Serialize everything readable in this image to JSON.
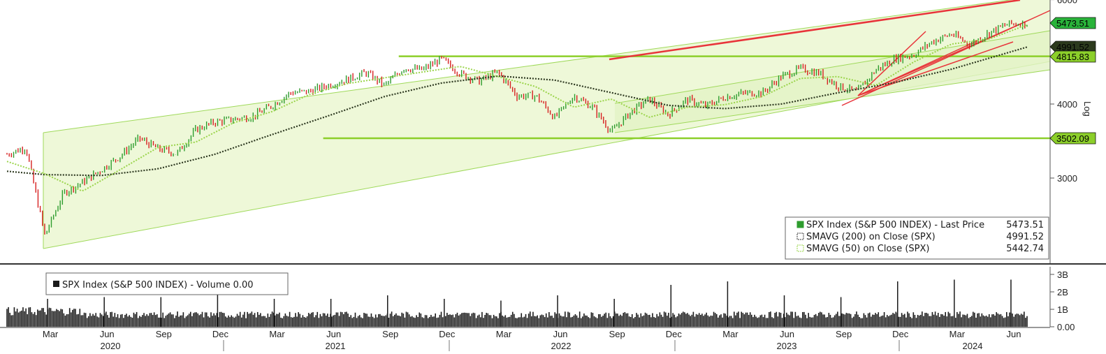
{
  "chart_data": {
    "type": "line",
    "scale": "log",
    "ylim": [
      2200,
      6000
    ],
    "xrange": [
      "2020-01",
      "2024-07"
    ],
    "colors": {
      "price_up": "#2e9c2e",
      "price_down": "#d62020",
      "sma200": "#2f3a22",
      "sma50": "#9ad44a",
      "channel_fill": "#eef8d8",
      "channel_line": "#9fd95a",
      "support_line": "#8ccf2a",
      "trend_line": "#e8343a"
    },
    "price_axis": {
      "ticks": [
        {
          "label": "3000",
          "value": 3000
        },
        {
          "label": "4000",
          "value": 4000
        },
        {
          "label": "6000",
          "value": 6000
        }
      ],
      "side_label": "Log"
    },
    "value_tags": [
      {
        "label": "5473.51",
        "value": 5473.51,
        "bg": "#29b33a"
      },
      {
        "label": "4991.52",
        "value": 4991.52,
        "bg": "#2c3a1d"
      },
      {
        "label": "4815.83",
        "value": 4815.83,
        "bg": "#8ccf2a"
      },
      {
        "label": "3502.09",
        "value": 3502.09,
        "bg": "#8ccf2a"
      }
    ],
    "horizontal_levels": [
      {
        "value": 4815.83,
        "from": "2021-09",
        "to": "2024-07"
      },
      {
        "value": 3502.09,
        "from": "2021-05",
        "to": "2024-07"
      }
    ],
    "series": [
      {
        "name": "SPX Index (S&P 500 INDEX) - Last Price",
        "last_value": "5473.51",
        "points": [
          [
            "2020-01",
            3290
          ],
          [
            "2020-02",
            3380
          ],
          [
            "2020-03",
            2400
          ],
          [
            "2020-04",
            2830
          ],
          [
            "2020-05",
            2950
          ],
          [
            "2020-06",
            3100
          ],
          [
            "2020-07",
            3270
          ],
          [
            "2020-08",
            3500
          ],
          [
            "2020-09",
            3360
          ],
          [
            "2020-10",
            3300
          ],
          [
            "2020-11",
            3620
          ],
          [
            "2020-12",
            3730
          ],
          [
            "2021-01",
            3770
          ],
          [
            "2021-02",
            3810
          ],
          [
            "2021-03",
            3970
          ],
          [
            "2021-04",
            4180
          ],
          [
            "2021-05",
            4200
          ],
          [
            "2021-06",
            4300
          ],
          [
            "2021-07",
            4400
          ],
          [
            "2021-08",
            4520
          ],
          [
            "2021-09",
            4300
          ],
          [
            "2021-10",
            4600
          ],
          [
            "2021-11",
            4570
          ],
          [
            "2021-12",
            4766
          ],
          [
            "2022-01",
            4500
          ],
          [
            "2022-02",
            4370
          ],
          [
            "2022-03",
            4530
          ],
          [
            "2022-04",
            4130
          ],
          [
            "2022-05",
            4130
          ],
          [
            "2022-06",
            3790
          ],
          [
            "2022-07",
            4130
          ],
          [
            "2022-08",
            3950
          ],
          [
            "2022-09",
            3590
          ],
          [
            "2022-10",
            3870
          ],
          [
            "2022-11",
            4080
          ],
          [
            "2022-12",
            3840
          ],
          [
            "2023-01",
            4070
          ],
          [
            "2023-02",
            3970
          ],
          [
            "2023-03",
            4110
          ],
          [
            "2023-04",
            4170
          ],
          [
            "2023-05",
            4180
          ],
          [
            "2023-06",
            4450
          ],
          [
            "2023-07",
            4590
          ],
          [
            "2023-08",
            4510
          ],
          [
            "2023-09",
            4290
          ],
          [
            "2023-10",
            4190
          ],
          [
            "2023-11",
            4570
          ],
          [
            "2023-12",
            4770
          ],
          [
            "2024-01",
            4850
          ],
          [
            "2024-02",
            5100
          ],
          [
            "2024-03",
            5250
          ],
          [
            "2024-04",
            5040
          ],
          [
            "2024-05",
            5280
          ],
          [
            "2024-06",
            5460
          ],
          [
            "2024-07",
            5473.51
          ]
        ]
      },
      {
        "name": "SMAVG (200)  on Close (SPX)",
        "last_value": "4991.52",
        "points": [
          [
            "2020-01",
            3080
          ],
          [
            "2020-03",
            3040
          ],
          [
            "2020-06",
            3030
          ],
          [
            "2020-09",
            3110
          ],
          [
            "2020-12",
            3290
          ],
          [
            "2021-03",
            3550
          ],
          [
            "2021-06",
            3820
          ],
          [
            "2021-09",
            4120
          ],
          [
            "2021-12",
            4340
          ],
          [
            "2022-03",
            4460
          ],
          [
            "2022-06",
            4390
          ],
          [
            "2022-09",
            4180
          ],
          [
            "2022-12",
            3980
          ],
          [
            "2023-03",
            3930
          ],
          [
            "2023-06",
            4000
          ],
          [
            "2023-09",
            4180
          ],
          [
            "2023-12",
            4350
          ],
          [
            "2024-03",
            4580
          ],
          [
            "2024-07",
            4991.52
          ]
        ]
      },
      {
        "name": "SMAVG (50)  on Close (SPX)",
        "last_value": "5442.74",
        "points": [
          [
            "2020-01",
            3200
          ],
          [
            "2020-03",
            3050
          ],
          [
            "2020-05",
            2850
          ],
          [
            "2020-07",
            3100
          ],
          [
            "2020-09",
            3380
          ],
          [
            "2020-11",
            3450
          ],
          [
            "2021-01",
            3720
          ],
          [
            "2021-03",
            3880
          ],
          [
            "2021-05",
            4150
          ],
          [
            "2021-07",
            4330
          ],
          [
            "2021-09",
            4430
          ],
          [
            "2021-11",
            4530
          ],
          [
            "2022-01",
            4630
          ],
          [
            "2022-03",
            4450
          ],
          [
            "2022-05",
            4280
          ],
          [
            "2022-07",
            3950
          ],
          [
            "2022-09",
            4080
          ],
          [
            "2022-11",
            3800
          ],
          [
            "2023-01",
            3950
          ],
          [
            "2023-03",
            3990
          ],
          [
            "2023-05",
            4120
          ],
          [
            "2023-07",
            4420
          ],
          [
            "2023-09",
            4450
          ],
          [
            "2023-11",
            4300
          ],
          [
            "2024-01",
            4710
          ],
          [
            "2024-03",
            5050
          ],
          [
            "2024-05",
            5150
          ],
          [
            "2024-07",
            5442.74
          ]
        ]
      }
    ],
    "volume": {
      "title": "SPX Index (S&P 500 INDEX) - Volume 0.00",
      "ticks": [
        {
          "label": "0.00",
          "value": 0
        },
        {
          "label": "1B",
          "value": 1
        },
        {
          "label": "2B",
          "value": 2
        },
        {
          "label": "3B",
          "value": 3
        }
      ],
      "typical": 0.7,
      "max": 3.2,
      "spikes": [
        [
          "2020-03",
          1.6
        ],
        [
          "2020-06",
          1.7
        ],
        [
          "2020-09",
          1.7
        ],
        [
          "2020-12",
          1.9
        ],
        [
          "2021-03",
          1.6
        ],
        [
          "2021-06",
          1.6
        ],
        [
          "2021-09",
          1.8
        ],
        [
          "2021-12",
          1.6
        ],
        [
          "2022-03",
          1.5
        ],
        [
          "2022-06",
          1.8
        ],
        [
          "2022-09",
          1.6
        ],
        [
          "2022-12",
          2.4
        ],
        [
          "2023-03",
          2.6
        ],
        [
          "2023-06",
          1.8
        ],
        [
          "2023-09",
          1.7
        ],
        [
          "2023-12",
          2.6
        ],
        [
          "2024-03",
          2.7
        ],
        [
          "2024-06",
          2.7
        ]
      ]
    },
    "x_axis": {
      "months": [
        "Mar",
        "Jun",
        "Sep",
        "Dec",
        "Mar",
        "Jun",
        "Sep",
        "Dec",
        "Mar",
        "Jun",
        "Sep",
        "Dec",
        "Mar",
        "Jun",
        "Sep",
        "Dec",
        "Mar",
        "Jun"
      ],
      "month_dates": [
        "2020-03",
        "2020-06",
        "2020-09",
        "2020-12",
        "2021-03",
        "2021-06",
        "2021-09",
        "2021-12",
        "2022-03",
        "2022-06",
        "2022-09",
        "2022-12",
        "2023-03",
        "2023-06",
        "2023-09",
        "2023-12",
        "2024-03",
        "2024-06"
      ],
      "years": [
        "2020",
        "2021",
        "2022",
        "2023",
        "2024"
      ]
    },
    "legend": {
      "placement": "bottom-right",
      "entries": [
        {
          "name": "SPX Index (S&P 500 INDEX) - Last Price",
          "value": "5473.51"
        },
        {
          "name": "SMAVG (200)  on Close (SPX)",
          "value": "4991.52"
        },
        {
          "name": "SMAVG (50)  on Close (SPX)",
          "value": "5442.74"
        }
      ]
    }
  }
}
